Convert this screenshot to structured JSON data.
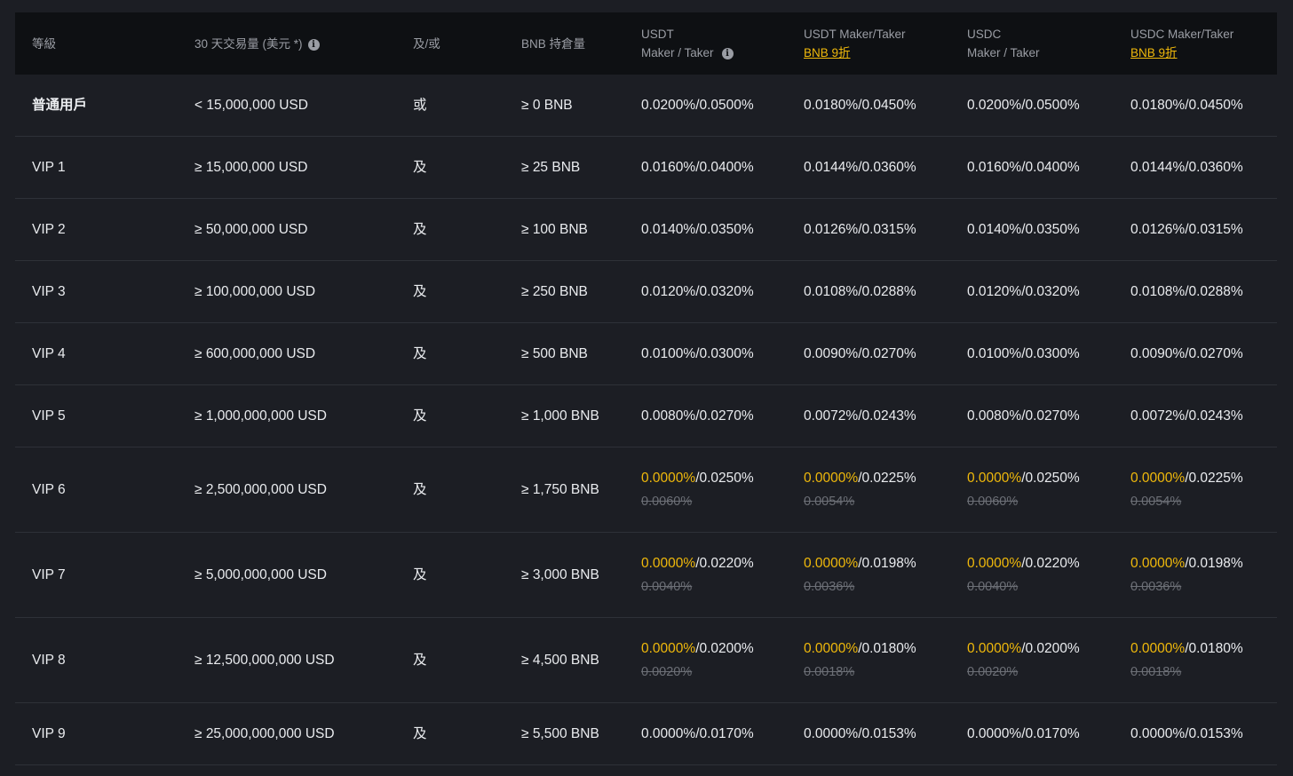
{
  "header": {
    "level": "等級",
    "volume": "30 天交易量 (美元 *)",
    "and_or": "及/或",
    "bnb": "BNB 持倉量",
    "usdt_l1": "USDT",
    "usdt_l2": "Maker / Taker",
    "usdt_bnb_l1": "USDT Maker/Taker",
    "usdt_bnb_link": "BNB 9折",
    "usdc_l1": "USDC",
    "usdc_l2": "Maker / Taker",
    "usdc_bnb_l1": "USDC Maker/Taker",
    "usdc_bnb_link": "BNB 9折",
    "info_icon": "i"
  },
  "colors": {
    "promo": "#f0b90b",
    "background": "#1c1e24",
    "header_bg": "#0e1013"
  },
  "rows": [
    {
      "level": "普通用戶",
      "volume": "< 15,000,000 USD",
      "and_or": "或",
      "bnb": "≥ 0 BNB",
      "fees": [
        {
          "maker": "0.0200%",
          "taker": "/0.0500%"
        },
        {
          "maker": "0.0180%",
          "taker": "/0.0450%"
        },
        {
          "maker": "0.0200%",
          "taker": "/0.0500%"
        },
        {
          "maker": "0.0180%",
          "taker": "/0.0450%"
        }
      ]
    },
    {
      "level": "VIP 1",
      "volume": "≥ 15,000,000 USD",
      "and_or": "及",
      "bnb": "≥ 25 BNB",
      "fees": [
        {
          "maker": "0.0160%",
          "taker": "/0.0400%"
        },
        {
          "maker": "0.0144%",
          "taker": "/0.0360%"
        },
        {
          "maker": "0.0160%",
          "taker": "/0.0400%"
        },
        {
          "maker": "0.0144%",
          "taker": "/0.0360%"
        }
      ]
    },
    {
      "level": "VIP 2",
      "volume": "≥ 50,000,000 USD",
      "and_or": "及",
      "bnb": "≥ 100 BNB",
      "fees": [
        {
          "maker": "0.0140%",
          "taker": "/0.0350%"
        },
        {
          "maker": "0.0126%",
          "taker": "/0.0315%"
        },
        {
          "maker": "0.0140%",
          "taker": "/0.0350%"
        },
        {
          "maker": "0.0126%",
          "taker": "/0.0315%"
        }
      ]
    },
    {
      "level": "VIP 3",
      "volume": "≥ 100,000,000 USD",
      "and_or": "及",
      "bnb": "≥ 250 BNB",
      "fees": [
        {
          "maker": "0.0120%",
          "taker": "/0.0320%"
        },
        {
          "maker": "0.0108%",
          "taker": "/0.0288%"
        },
        {
          "maker": "0.0120%",
          "taker": "/0.0320%"
        },
        {
          "maker": "0.0108%",
          "taker": "/0.0288%"
        }
      ]
    },
    {
      "level": "VIP 4",
      "volume": "≥ 600,000,000 USD",
      "and_or": "及",
      "bnb": "≥ 500 BNB",
      "fees": [
        {
          "maker": "0.0100%",
          "taker": "/0.0300%"
        },
        {
          "maker": "0.0090%",
          "taker": "/0.0270%"
        },
        {
          "maker": "0.0100%",
          "taker": "/0.0300%"
        },
        {
          "maker": "0.0090%",
          "taker": "/0.0270%"
        }
      ]
    },
    {
      "level": "VIP 5",
      "volume": "≥ 1,000,000,000 USD",
      "and_or": "及",
      "bnb": "≥ 1,000 BNB",
      "fees": [
        {
          "maker": "0.0080%",
          "taker": "/0.0270%"
        },
        {
          "maker": "0.0072%",
          "taker": "/0.0243%"
        },
        {
          "maker": "0.0080%",
          "taker": "/0.0270%"
        },
        {
          "maker": "0.0072%",
          "taker": "/0.0243%"
        }
      ]
    },
    {
      "level": "VIP 6",
      "volume": "≥ 2,500,000,000 USD",
      "and_or": "及",
      "bnb": "≥ 1,750 BNB",
      "fees": [
        {
          "maker": "0.0000%",
          "taker": "/0.0250%",
          "struck": "0.0060%",
          "promo": true
        },
        {
          "maker": "0.0000%",
          "taker": "/0.0225%",
          "struck": "0.0054%",
          "promo": true
        },
        {
          "maker": "0.0000%",
          "taker": "/0.0250%",
          "struck": "0.0060%",
          "promo": true
        },
        {
          "maker": "0.0000%",
          "taker": "/0.0225%",
          "struck": "0.0054%",
          "promo": true
        }
      ]
    },
    {
      "level": "VIP 7",
      "volume": "≥ 5,000,000,000 USD",
      "and_or": "及",
      "bnb": "≥ 3,000 BNB",
      "fees": [
        {
          "maker": "0.0000%",
          "taker": "/0.0220%",
          "struck": "0.0040%",
          "promo": true
        },
        {
          "maker": "0.0000%",
          "taker": "/0.0198%",
          "struck": "0.0036%",
          "promo": true
        },
        {
          "maker": "0.0000%",
          "taker": "/0.0220%",
          "struck": "0.0040%",
          "promo": true
        },
        {
          "maker": "0.0000%",
          "taker": "/0.0198%",
          "struck": "0.0036%",
          "promo": true
        }
      ]
    },
    {
      "level": "VIP 8",
      "volume": "≥ 12,500,000,000 USD",
      "and_or": "及",
      "bnb": "≥ 4,500 BNB",
      "fees": [
        {
          "maker": "0.0000%",
          "taker": "/0.0200%",
          "struck": "0.0020%",
          "promo": true
        },
        {
          "maker": "0.0000%",
          "taker": "/0.0180%",
          "struck": "0.0018%",
          "promo": true
        },
        {
          "maker": "0.0000%",
          "taker": "/0.0200%",
          "struck": "0.0020%",
          "promo": true
        },
        {
          "maker": "0.0000%",
          "taker": "/0.0180%",
          "struck": "0.0018%",
          "promo": true
        }
      ]
    },
    {
      "level": "VIP 9",
      "volume": "≥ 25,000,000,000 USD",
      "and_or": "及",
      "bnb": "≥ 5,500 BNB",
      "fees": [
        {
          "maker": "0.0000%",
          "taker": "/0.0170%"
        },
        {
          "maker": "0.0000%",
          "taker": "/0.0153%"
        },
        {
          "maker": "0.0000%",
          "taker": "/0.0170%"
        },
        {
          "maker": "0.0000%",
          "taker": "/0.0153%"
        }
      ]
    }
  ]
}
